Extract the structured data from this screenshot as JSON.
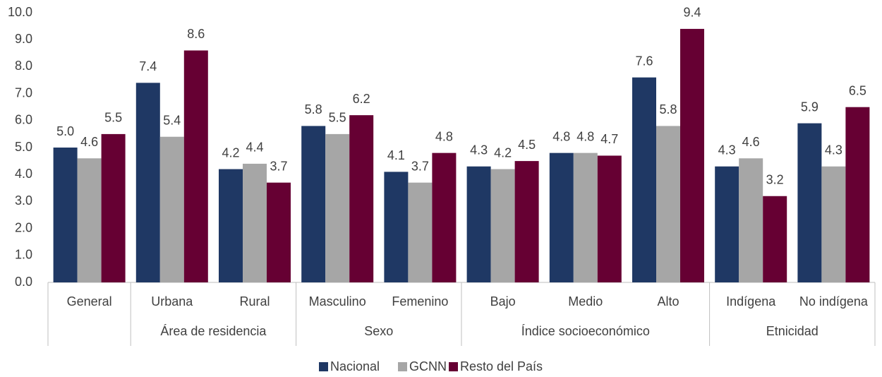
{
  "chart_data": {
    "type": "bar",
    "categories": [
      "General",
      "Urbana",
      "Rural",
      "Masculino",
      "Femenino",
      "Bajo",
      "Medio",
      "Alto",
      "Indígena",
      "No indígena"
    ],
    "group_labels": [
      null,
      "Área de residencia",
      "Área de residencia",
      "Sexo",
      "Sexo",
      "Índice socioeconómico",
      "Índice socioeconómico",
      "Índice socioeconómico",
      "Etnicidad",
      "Etnicidad"
    ],
    "series": [
      {
        "name": "Nacional",
        "color": "#1f3864",
        "values": [
          5.0,
          7.4,
          4.2,
          5.8,
          4.1,
          4.3,
          4.8,
          7.6,
          4.3,
          5.9
        ],
        "value_labels": [
          "5.0",
          "7.4",
          "4.2",
          "5.8",
          "4.1",
          "4.3",
          "4.8",
          "7.6",
          "4.3",
          "5.9"
        ]
      },
      {
        "name": "GCNN",
        "color": "#a6a6a6",
        "values": [
          4.6,
          5.4,
          4.4,
          5.5,
          3.7,
          4.2,
          4.8,
          5.8,
          4.6,
          4.3
        ],
        "value_labels": [
          "4.6",
          "5.4",
          "4.4",
          "5.5",
          "3.7",
          "4.2",
          "4.8",
          "5.8",
          "4.6",
          "4.3"
        ]
      },
      {
        "name": "Resto del País",
        "color": "#660033",
        "values": [
          5.5,
          8.6,
          3.7,
          6.2,
          4.8,
          4.5,
          4.7,
          9.4,
          3.2,
          6.5
        ],
        "value_labels": [
          "5.5",
          "8.6",
          "3.7",
          "6.2",
          "4.8",
          "4.5",
          "4.7",
          "9.4",
          "3.2",
          "6.5"
        ]
      }
    ],
    "ylim": [
      0,
      10
    ],
    "yticks": [
      {
        "value": 0,
        "label": "0.0"
      },
      {
        "value": 1,
        "label": "1.0"
      },
      {
        "value": 2,
        "label": "2.0"
      },
      {
        "value": 3,
        "label": "3.0"
      },
      {
        "value": 4,
        "label": "4.0"
      },
      {
        "value": 5,
        "label": "5.0"
      },
      {
        "value": 6,
        "label": "6.0"
      },
      {
        "value": 7,
        "label": "7.0"
      },
      {
        "value": 8,
        "label": "8.0"
      },
      {
        "value": 9,
        "label": "9.0"
      },
      {
        "value": 10,
        "label": "10.0"
      }
    ],
    "grid": false,
    "legend": "bottom"
  }
}
